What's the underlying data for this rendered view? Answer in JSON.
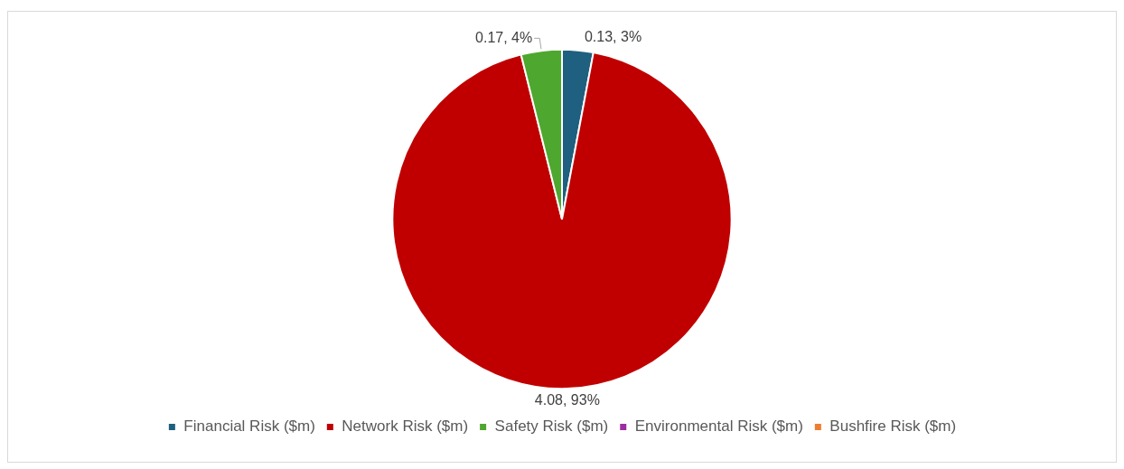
{
  "chart_data": {
    "type": "pie",
    "categories": [
      "Financial Risk ($m)",
      "Network Risk ($m)",
      "Safety Risk ($m)",
      "Environmental Risk ($m)",
      "Bushfire Risk ($m)"
    ],
    "values": [
      0.13,
      4.08,
      0.17,
      0,
      0
    ],
    "colors": [
      "#1f5f7f",
      "#c00000",
      "#4ea72e",
      "#9c2ea0",
      "#ed7d31"
    ],
    "value_labels": [
      "0.13, 3%",
      "4.08, 93%",
      "0.17, 4%",
      null,
      null
    ],
    "legend": "bottom"
  }
}
